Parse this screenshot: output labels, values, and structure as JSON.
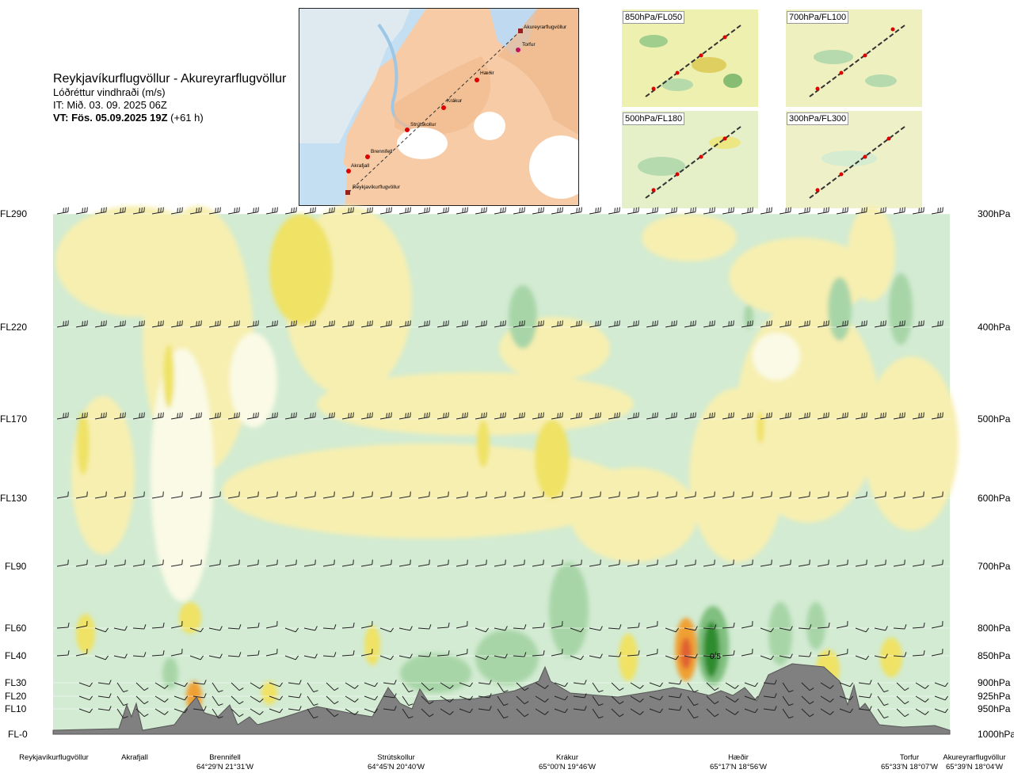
{
  "header": {
    "title": "Reykjavíkurflugvöllur - Akureyrarflugvöllur",
    "subtitle": "Lóðréttur vindhraði (m/s)",
    "it": "IT: Mið. 03. 09. 2025 06Z",
    "vt_bold": "VT: Fös. 05.09.2025 19Z",
    "vt_rest": " (+61 h)"
  },
  "map": {
    "stations": [
      "Akureyrarflugvöllur",
      "Torfur",
      "Hæðir",
      "Krákur",
      "Strútskollur",
      "Brennifell",
      "Akrafjall",
      "Reykjavíkurflugvöllur"
    ]
  },
  "minimaps": [
    {
      "label": "850hPa/FL050"
    },
    {
      "label": "700hPa/FL100"
    },
    {
      "label": "500hPa/FL180"
    },
    {
      "label": "300hPa/FL300"
    }
  ],
  "chart_data": {
    "type": "heatmap",
    "title": "Lóðréttur vindhraði (m/s)",
    "levels_left": [
      "FL290",
      "FL220",
      "FL170",
      "FL130",
      "FL90",
      "FL60",
      "FL40",
      "FL30",
      "FL20",
      "FL10",
      "FL-0"
    ],
    "levels_right": [
      "300hPa",
      "400hPa",
      "500hPa",
      "600hPa",
      "700hPa",
      "800hPa",
      "850hPa",
      "900hPa",
      "925hPa",
      "950hPa",
      "1000hPa"
    ],
    "annotation": "0.5",
    "color_scale": [
      {
        "class": "strong-down",
        "color": "#2d8c2d"
      },
      {
        "class": "mod-down",
        "color": "#7fbf7f"
      },
      {
        "class": "weak-down",
        "color": "#a8d5a8"
      },
      {
        "class": "very-weak-down",
        "color": "#d2ebd2"
      },
      {
        "class": "neutral",
        "color": "#fafae6"
      },
      {
        "class": "weak-up",
        "color": "#f7efb0"
      },
      {
        "class": "mod-up",
        "color": "#efe265"
      },
      {
        "class": "strong-up",
        "color": "#f0a030"
      },
      {
        "class": "very-strong-up",
        "color": "#e06030"
      }
    ]
  },
  "stations": [
    {
      "name": "Reykjavíkurflugvöllur",
      "coord": ""
    },
    {
      "name": "Akrafjall",
      "coord": ""
    },
    {
      "name": "Brennifell",
      "coord": "64°29'N 21°31'W"
    },
    {
      "name": "Strútskollur",
      "coord": "64°45'N 20°40'W"
    },
    {
      "name": "Krákur",
      "coord": "65°00'N 19°46'W"
    },
    {
      "name": "Hæðir",
      "coord": "65°17'N 18°56'W"
    },
    {
      "name": "Torfur",
      "coord": "65°33'N 18°07'W"
    },
    {
      "name": "Akureyrarflugvöllur",
      "coord": "65°39'N 18°04'W"
    }
  ],
  "colors": {
    "terrain": "#808080",
    "land": "#f5c9a0",
    "water": "#bcd8ee",
    "route": "#333333",
    "station": "#dd0000"
  }
}
